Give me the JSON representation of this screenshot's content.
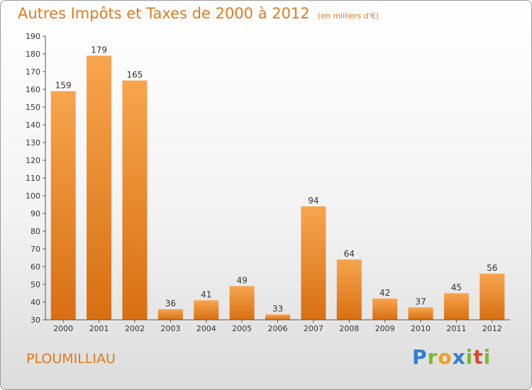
{
  "header": {
    "title": "Autres Impôts et Taxes de 2000 à 2012",
    "subtitle": "(en milliers d'€)"
  },
  "location": "PLOUMILLIAU",
  "logo": {
    "text": "Proxiti",
    "letters": [
      {
        "ch": "P",
        "color": "#2f7fd1"
      },
      {
        "ch": "r",
        "color": "#7cb82f"
      },
      {
        "ch": "o",
        "color": "#f0a020"
      },
      {
        "ch": "x",
        "color": "#2f7fd1"
      },
      {
        "ch": "i",
        "color": "#7cb82f"
      },
      {
        "ch": "t",
        "color": "#e0452e"
      },
      {
        "ch": "i",
        "color": "#7cb82f"
      }
    ]
  },
  "colors": {
    "bar_top": "#f7a54e",
    "bar_bottom": "#d86f12",
    "accent": "#e07a1e"
  },
  "chart_data": {
    "type": "bar",
    "categories": [
      "2000",
      "2001",
      "2002",
      "2003",
      "2004",
      "2005",
      "2006",
      "2007",
      "2008",
      "2009",
      "2010",
      "2011",
      "2012"
    ],
    "values": [
      159,
      179,
      165,
      36,
      41,
      49,
      33,
      94,
      64,
      42,
      37,
      45,
      56
    ],
    "title": "Autres Impôts et Taxes de 2000 à 2012",
    "subtitle": "(en milliers d'€)",
    "xlabel": "",
    "ylabel": "",
    "ylim": [
      30,
      190
    ],
    "ytick_step": 10,
    "grid": false,
    "legend": "none"
  }
}
